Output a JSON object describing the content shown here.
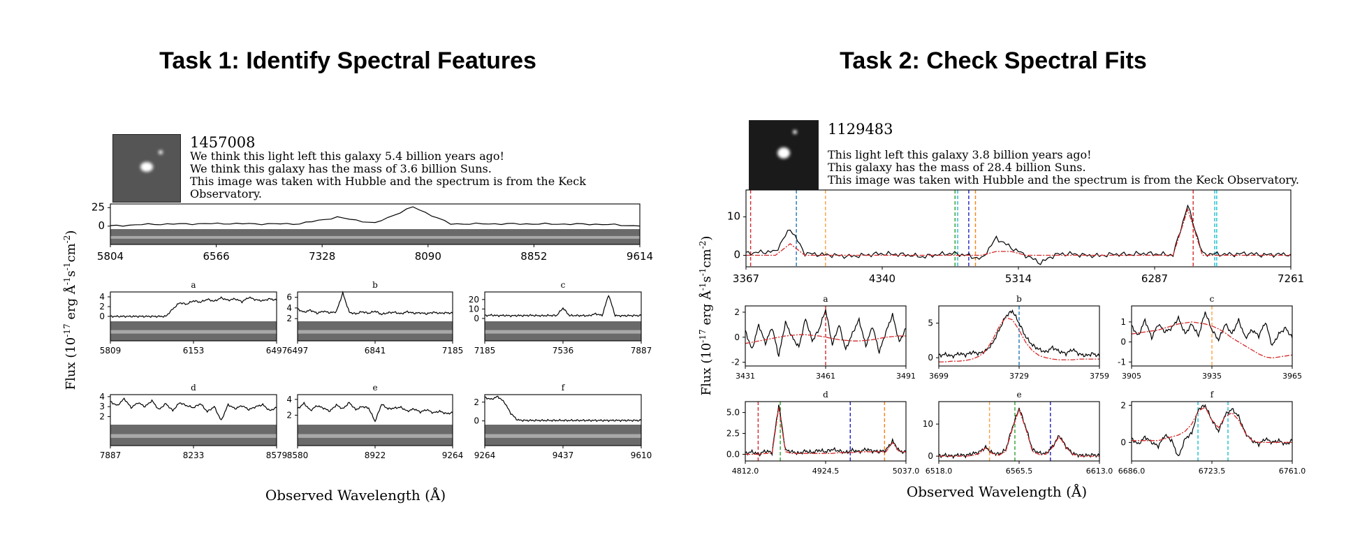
{
  "task1": {
    "title": "Task 1: Identify Spectral Features",
    "galaxy": {
      "id": "1457008",
      "lines": [
        "We think this light left this galaxy 5.4 billion years ago!",
        "We think this galaxy has the mass of 3.6 billion Suns.",
        "This image was taken with Hubble and the spectrum is from the Keck",
        "Observatory."
      ]
    },
    "ylabel": "Flux (10$^{-17}$ erg Å$^{-1}$s$^{-1}$cm$^{-2}$)",
    "xlabel": "Observed Wavelength (Å)"
  },
  "task2": {
    "title": "Task 2: Check Spectral Fits",
    "galaxy": {
      "id": "1129483",
      "lines": [
        "This light left this galaxy 3.8 billion years ago!",
        "This galaxy has the mass of 28.4 billion Suns.",
        "This image was taken with Hubble and the spectrum is from the Keck Observatory."
      ]
    },
    "ylabel": "Flux (10$^{-17}$ erg Å$^{-1}$s$^{-1}$cm$^{-2}$)",
    "xlabel": "Observed Wavelength (Å)"
  },
  "chart_data": [
    {
      "type": "line",
      "panel": "task1-main",
      "xticks": [
        "5804",
        "6566",
        "7328",
        "8090",
        "8852",
        "9614"
      ],
      "yticks": [
        "0",
        "25"
      ],
      "ylim": [
        -4,
        30
      ],
      "has_2d_spectrum": true,
      "series": [
        {
          "values": [
            0.2,
            2.5,
            3.0,
            3.5,
            3.0,
            3.2,
            12,
            4,
            26,
            3,
            3.1,
            3.0,
            2.8,
            2.5,
            0.2
          ]
        }
      ]
    },
    {
      "type": "line",
      "panel": "task1-a",
      "label": "a",
      "xticks": [
        "5809",
        "6153",
        "6497"
      ],
      "yticks": [
        "0",
        "2",
        "4"
      ],
      "ylim": [
        -1,
        5
      ],
      "has_2d_spectrum": true,
      "series": [
        {
          "values": [
            0,
            0,
            0,
            0,
            0,
            0,
            0,
            0,
            0,
            1.5,
            2.8,
            2.5,
            3.2,
            2.9,
            3.5,
            3.1,
            3.8,
            3.3,
            3.6,
            3.0,
            3.9,
            3.4,
            3.2,
            3.6,
            3.3
          ]
        }
      ]
    },
    {
      "type": "line",
      "panel": "task1-b",
      "label": "b",
      "xticks": [
        "6497",
        "6841",
        "7185"
      ],
      "yticks": [
        "2",
        "4",
        "6"
      ],
      "ylim": [
        1.5,
        7
      ],
      "has_2d_spectrum": true,
      "series": [
        {
          "values": [
            3.8,
            3.2,
            3.6,
            3.0,
            3.4,
            3.1,
            3.3,
            6.8,
            3.2,
            2.9,
            3.3,
            3.0,
            3.4,
            2.8,
            3.1,
            3.2,
            2.9,
            3.3,
            3.0,
            3.1,
            2.9,
            3.2,
            3.0,
            3.1,
            3.0
          ]
        }
      ]
    },
    {
      "type": "line",
      "panel": "task1-c",
      "label": "c",
      "xticks": [
        "7185",
        "7536",
        "7887"
      ],
      "yticks": [
        "0",
        "10",
        "20"
      ],
      "ylim": [
        -3,
        28
      ],
      "has_2d_spectrum": true,
      "series": [
        {
          "values": [
            3,
            3.5,
            3,
            3.2,
            2.8,
            3.1,
            3,
            3.3,
            3,
            2.9,
            3.2,
            3,
            11,
            3,
            3.1,
            3,
            2.9,
            5,
            3,
            25,
            3,
            2.8,
            3,
            3.1,
            3
          ]
        }
      ]
    },
    {
      "type": "line",
      "panel": "task1-d",
      "label": "d",
      "xticks": [
        "7887",
        "8233",
        "8579"
      ],
      "yticks": [
        "2",
        "3",
        "4"
      ],
      "ylim": [
        1.2,
        4.2
      ],
      "has_2d_spectrum": true,
      "series": [
        {
          "values": [
            3.5,
            3.1,
            3.8,
            2.9,
            3.4,
            3.0,
            3.6,
            2.7,
            3.3,
            2.6,
            3.4,
            3.1,
            2.9,
            3.3,
            2.5,
            3.0,
            1.6,
            3.2,
            2.8,
            3.1,
            2.7,
            3.0,
            3.2,
            2.6,
            2.9
          ]
        }
      ]
    },
    {
      "type": "line",
      "panel": "task1-e",
      "label": "e",
      "xticks": [
        "8580",
        "8922",
        "9264"
      ],
      "yticks": [
        "2",
        "4"
      ],
      "ylim": [
        0.8,
        4.6
      ],
      "has_2d_spectrum": true,
      "series": [
        {
          "values": [
            2.8,
            3.5,
            2.6,
            3.2,
            2.9,
            2.5,
            3.3,
            2.8,
            3.6,
            2.7,
            3.1,
            2.9,
            1.2,
            3.4,
            2.8,
            2.9,
            3.0,
            2.5,
            2.8,
            2.4,
            2.7,
            2.3,
            2.5,
            2.2,
            2.3
          ]
        }
      ]
    },
    {
      "type": "line",
      "panel": "task1-f",
      "label": "f",
      "xticks": [
        "9264",
        "9437",
        "9610"
      ],
      "yticks": [
        "0",
        "2"
      ],
      "ylim": [
        -0.4,
        2.8
      ],
      "has_2d_spectrum": true,
      "series": [
        {
          "values": [
            2.5,
            2.3,
            2.6,
            2.0,
            0.8,
            0.1,
            0.05,
            0.05,
            0.05,
            0.05,
            0.05,
            0.05,
            0.05,
            0.05,
            0.05,
            0.05,
            0.05,
            0.05,
            0.05,
            0.05,
            0.05,
            0.05,
            0.05,
            0.05,
            0.05
          ]
        }
      ]
    },
    {
      "type": "line",
      "panel": "task2-main",
      "xticks": [
        "3367",
        "4340",
        "5314",
        "6287",
        "7261"
      ],
      "yticks": [
        "0",
        "10"
      ],
      "ylim": [
        -3,
        17
      ],
      "vlines": [
        {
          "x": 3400,
          "color": "#d62728"
        },
        {
          "x": 3727,
          "color": "#1f77b4"
        },
        {
          "x": 3935,
          "color": "#ff9f40"
        },
        {
          "x": 4861,
          "color": "#2ca02c"
        },
        {
          "x": 4880,
          "color": "#17becf"
        },
        {
          "x": 4959,
          "color": "#1f1fbf"
        },
        {
          "x": 5007,
          "color": "#ff7f0e"
        },
        {
          "x": 6563,
          "color": "#d62728"
        },
        {
          "x": 6717,
          "color": "#17becf"
        },
        {
          "x": 6731,
          "color": "#17becf"
        }
      ],
      "series": [
        {
          "name": "data",
          "values": [
            0.5,
            0.8,
            1.0,
            7,
            0.5,
            0.2,
            0,
            -0.3,
            0,
            0.4,
            0.3,
            0.1,
            -0.4,
            0.2,
            0.5,
            0.0,
            -1,
            4.5,
            2,
            0,
            -2,
            0.2,
            0.4,
            0,
            -0.1,
            0.3,
            0.2,
            0.5,
            0.3,
            0.1,
            13,
            0.4,
            0.3,
            0.2,
            0.5,
            0.1,
            0.2,
            0.3
          ]
        },
        {
          "name": "fit",
          "values": [
            0,
            0,
            0,
            3,
            0,
            0,
            0,
            0,
            0,
            0,
            0,
            0,
            0,
            0,
            0,
            0,
            0,
            1,
            1,
            0,
            0,
            0,
            0,
            0,
            0,
            0,
            0,
            0,
            0,
            0,
            12,
            0,
            0,
            0,
            0,
            0,
            0,
            0
          ]
        }
      ]
    },
    {
      "type": "line",
      "panel": "task2-a",
      "label": "a",
      "xticks": [
        "3431",
        "3461",
        "3491"
      ],
      "yticks": [
        "-2",
        "0",
        "2"
      ],
      "ylim": [
        -2.3,
        2.5
      ],
      "vlines": [
        {
          "x": 3461,
          "color": "#d62728"
        }
      ],
      "series": [
        {
          "name": "data",
          "values": [
            0.5,
            -1,
            1,
            -0.5,
            0.8,
            -1.5,
            1.2,
            0,
            -0.8,
            1.5,
            -0.3,
            0.6,
            2.2,
            -0.6,
            1,
            -1,
            0.3,
            1.4,
            -0.7,
            0.9,
            -1.2,
            0.4,
            1.8,
            -0.4,
            0.7
          ]
        },
        {
          "name": "fit",
          "values": [
            -0.5,
            -0.4,
            -0.3,
            -0.2,
            -0.1,
            0,
            0.1,
            0.15,
            0.2,
            0.2,
            0.15,
            0.1,
            0,
            -0.1,
            -0.2,
            -0.25,
            -0.3,
            -0.3,
            -0.25,
            -0.2,
            -0.1,
            0,
            0.05,
            0.1,
            0.1
          ]
        }
      ]
    },
    {
      "type": "line",
      "panel": "task2-b",
      "label": "b",
      "xticks": [
        "3699",
        "3729",
        "3759"
      ],
      "yticks": [
        "0",
        "5"
      ],
      "ylim": [
        -1.2,
        7.5
      ],
      "vlines": [
        {
          "x": 3729,
          "color": "#1f77b4"
        }
      ],
      "series": [
        {
          "name": "data",
          "values": [
            0.3,
            0.5,
            0.2,
            0.6,
            0.4,
            0.8,
            0.6,
            1,
            2,
            4,
            6,
            6.8,
            5,
            3,
            1.8,
            1.2,
            0.8,
            1.5,
            0.9,
            0.6,
            1.2,
            0.5,
            0.3,
            0.6,
            0.2
          ]
        },
        {
          "name": "fit",
          "values": [
            -0.6,
            -0.6,
            -0.5,
            -0.5,
            -0.4,
            -0.2,
            0.2,
            1,
            2.5,
            4.5,
            5.8,
            5.5,
            4,
            2.2,
            1,
            0.3,
            0,
            -0.2,
            -0.3,
            -0.3,
            -0.3,
            -0.2,
            -0.2,
            -0.2,
            -0.2
          ]
        }
      ]
    },
    {
      "type": "line",
      "panel": "task2-c",
      "label": "c",
      "xticks": [
        "3905",
        "3935",
        "3965"
      ],
      "yticks": [
        "-1",
        "0",
        "1"
      ],
      "ylim": [
        -1.2,
        1.8
      ],
      "vlines": [
        {
          "x": 3935,
          "color": "#ff9f40"
        }
      ],
      "series": [
        {
          "name": "data",
          "values": [
            0.8,
            0.3,
            1.1,
            0.2,
            0.9,
            0.5,
            0.7,
            1.2,
            0.4,
            0.9,
            0.3,
            1.5,
            0.6,
            0.1,
            0.9,
            0.4,
            1.1,
            0.2,
            0.6,
            0.3,
            1.0,
            -0.2,
            0.4,
            0.7,
            0.2
          ]
        },
        {
          "name": "fit",
          "values": [
            0.4,
            0.45,
            0.5,
            0.55,
            0.6,
            0.7,
            0.8,
            0.9,
            0.95,
            1,
            0.95,
            0.9,
            0.8,
            0.65,
            0.45,
            0.2,
            0,
            -0.2,
            -0.4,
            -0.6,
            -0.75,
            -0.8,
            -0.75,
            -0.7,
            -0.65
          ]
        }
      ]
    },
    {
      "type": "line",
      "panel": "task2-d",
      "label": "d",
      "xticks": [
        "4812.0",
        "4924.5",
        "5037.0"
      ],
      "yticks": [
        "0.0",
        "2.5",
        "5.0"
      ],
      "ylim": [
        -0.8,
        6.3
      ],
      "vlines": [
        {
          "x": 4830,
          "color": "#d62728"
        },
        {
          "x": 4861,
          "color": "#2ca02c"
        },
        {
          "x": 4959,
          "color": "#1f1fbf"
        },
        {
          "x": 5007,
          "color": "#ff7f0e"
        }
      ],
      "series": [
        {
          "name": "data",
          "values": [
            0.1,
            0.3,
            0,
            0.4,
            0.2,
            6,
            0.5,
            0.3,
            0.1,
            0.4,
            0.2,
            0.5,
            0.3,
            0.6,
            0.4,
            0.2,
            0.5,
            0.3,
            0.6,
            0.4,
            0.3,
            0.5,
            1.6,
            0.4,
            0.2
          ]
        },
        {
          "name": "fit",
          "values": [
            0,
            0,
            0,
            0.1,
            0.1,
            5.6,
            0.3,
            0.1,
            0.1,
            0.1,
            0.1,
            0.1,
            0.1,
            0.1,
            0.2,
            0.2,
            0.2,
            0.3,
            0.3,
            0.3,
            0.3,
            0.3,
            1.4,
            0.3,
            0.3
          ]
        }
      ]
    },
    {
      "type": "line",
      "panel": "task2-e",
      "label": "e",
      "xticks": [
        "6518.0",
        "6565.5",
        "6613.0"
      ],
      "yticks": [
        "0",
        "10"
      ],
      "ylim": [
        -1.5,
        17
      ],
      "vlines": [
        {
          "x": 6548,
          "color": "#ff9f40"
        },
        {
          "x": 6563,
          "color": "#2ca02c"
        },
        {
          "x": 6584,
          "color": "#1f1fbf"
        }
      ],
      "series": [
        {
          "name": "data",
          "values": [
            0.1,
            0.3,
            0,
            0.4,
            0.2,
            0.8,
            1.2,
            2.8,
            1,
            0.6,
            2,
            9,
            15,
            9,
            2,
            1,
            0.8,
            3,
            6.5,
            3,
            0.8,
            0.3,
            0.2,
            0.4,
            0.1
          ]
        },
        {
          "name": "fit",
          "values": [
            0,
            0,
            0,
            0,
            0,
            0.2,
            0.8,
            2.6,
            0.8,
            0.3,
            1.5,
            8.5,
            14.5,
            8.5,
            1.5,
            0.5,
            0.6,
            2.8,
            6.2,
            2.8,
            0.6,
            0,
            0,
            0,
            0
          ]
        }
      ]
    },
    {
      "type": "line",
      "panel": "task2-f",
      "label": "f",
      "xticks": [
        "6686.0",
        "6723.5",
        "6761.0"
      ],
      "yticks": [
        "0",
        "2"
      ],
      "ylim": [
        -1,
        2.2
      ],
      "vlines": [
        {
          "x": 6717,
          "color": "#17becf"
        },
        {
          "x": 6731,
          "color": "#17becf"
        }
      ],
      "series": [
        {
          "name": "data",
          "values": [
            0.2,
            -0.1,
            0.3,
            0,
            -0.2,
            0.4,
            0.1,
            -0.8,
            0.2,
            0.5,
            1.8,
            2,
            1.2,
            0.6,
            1.5,
            1.8,
            1.4,
            0.5,
            0.1,
            -0.1,
            0.2,
            0,
            0.1,
            -0.1,
            0.1
          ]
        },
        {
          "name": "fit",
          "values": [
            0.1,
            0.1,
            0.1,
            0.1,
            0.1,
            0.2,
            0.3,
            0.4,
            0.6,
            1,
            1.7,
            1.9,
            1.2,
            0.8,
            1.4,
            1.6,
            1.2,
            0.5,
            0.1,
            0,
            0,
            0,
            0,
            0,
            0
          ]
        }
      ]
    }
  ]
}
